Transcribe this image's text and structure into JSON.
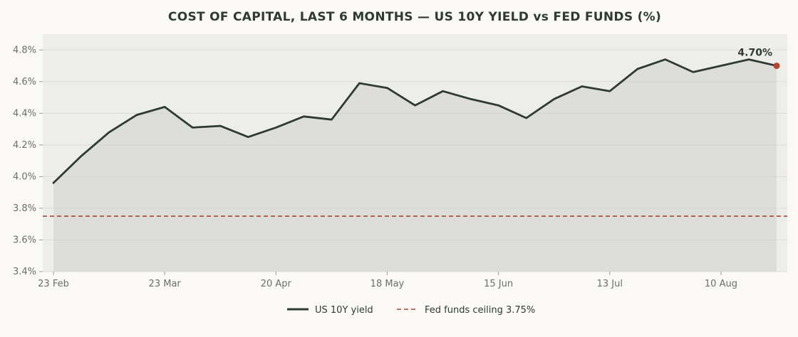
{
  "chart_data": {
    "type": "line",
    "title": "COST OF CAPITAL, LAST 6 MONTHS — US 10Y YIELD vs FED FUNDS (%)",
    "ylim": [
      3.4,
      4.9
    ],
    "yticks": [
      3.4,
      3.6,
      3.8,
      4.0,
      4.2,
      4.4,
      4.6,
      4.8
    ],
    "ytick_labels": [
      "3.4%",
      "3.6%",
      "3.8%",
      "4.0%",
      "4.2%",
      "4.4%",
      "4.6%",
      "4.8%"
    ],
    "x": [
      "23 Feb",
      "2 Mar",
      "9 Mar",
      "16 Mar",
      "23 Mar",
      "30 Mar",
      "6 Apr",
      "13 Apr",
      "20 Apr",
      "27 Apr",
      "4 May",
      "11 May",
      "18 May",
      "25 May",
      "1 Jun",
      "8 Jun",
      "15 Jun",
      "22 Jun",
      "29 Jun",
      "6 Jul",
      "13 Jul",
      "20 Jul",
      "27 Jul",
      "3 Aug",
      "10 Aug",
      "17 Aug",
      "24 Aug"
    ],
    "xtick_labels": [
      "23 Feb",
      "23 Mar",
      "20 Apr",
      "18 May",
      "15 Jun",
      "13 Jul",
      "10 Aug"
    ],
    "grid": true,
    "series": [
      {
        "name": "US 10Y yield",
        "color": "#2f3a35",
        "values": [
          3.96,
          4.13,
          4.28,
          4.39,
          4.44,
          4.31,
          4.32,
          4.25,
          4.31,
          4.38,
          4.36,
          4.59,
          4.56,
          4.45,
          4.54,
          4.49,
          4.45,
          4.37,
          4.49,
          4.57,
          4.54,
          4.68,
          4.74,
          4.66,
          4.7,
          4.74,
          4.7
        ]
      }
    ],
    "reference_line": {
      "name": "Fed funds ceiling 3.75%",
      "value": 3.75,
      "color": "#a8443a",
      "style": "dashed"
    },
    "end_marker": {
      "label": "4.70%",
      "color": "#b5452f"
    },
    "legend": {
      "placement": "bottom-center",
      "entries": [
        "US 10Y yield",
        "Fed funds ceiling 3.75%"
      ]
    }
  }
}
